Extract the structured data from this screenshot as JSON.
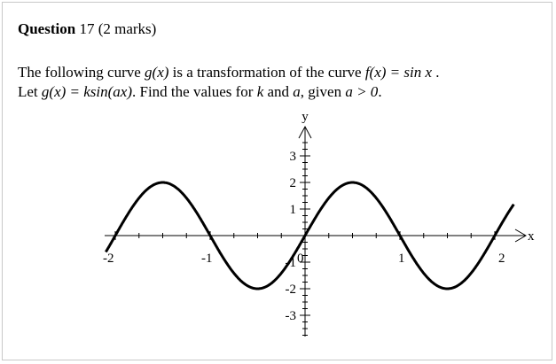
{
  "question": {
    "title_bold": "Question",
    "title_rest": "17 (2 marks)",
    "line1_a": "The following curve ",
    "line1_g": "g(x)",
    "line1_b": " is a transformation of the curve ",
    "line1_f": "f(x) = sin x",
    "line1_c": " .",
    "line2_a": "Let ",
    "line2_g": "g(x) = ksin(ax)",
    "line2_b": ". Find the values for ",
    "line2_k": "k",
    "line2_c": " and ",
    "line2_var": "a",
    "line2_d": ", given ",
    "line2_cond": "a > 0",
    "line2_e": "."
  },
  "chart_data": {
    "type": "line",
    "function": "y = 2 sin(pi x)",
    "x_range": [
      -2.1,
      2.2
    ],
    "y_range": [
      -3,
      3
    ],
    "xlabel": "x",
    "ylabel": "y",
    "x_tick_labels": [
      "-2",
      "-1",
      "0",
      "1",
      "2"
    ],
    "y_tick_labels": [
      "3",
      "2",
      "1",
      "-1",
      "-2",
      "-3"
    ],
    "x_minor_tick_step": 0.25,
    "y_minor_tick_step": 0.25,
    "amplitude": 2,
    "period": 2
  }
}
